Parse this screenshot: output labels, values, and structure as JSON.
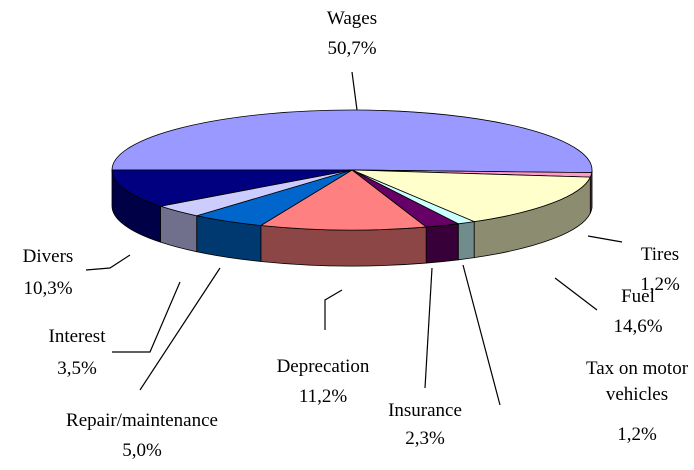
{
  "chart_data": {
    "type": "pie",
    "categories": [
      "Wages",
      "Tires",
      "Fuel",
      "Tax on motor vehicles",
      "Insurance",
      "Deprecation",
      "Repair/maintenance",
      "Interest",
      "Divers"
    ],
    "values": [
      50.7,
      1.2,
      14.6,
      1.2,
      2.3,
      11.2,
      5.0,
      3.5,
      10.3
    ],
    "value_labels": [
      "50,7%",
      "1,2%",
      "14,6%",
      "1,2%",
      "2,3%",
      "11,2%",
      "5,0%",
      "3,5%",
      "10,3%"
    ],
    "colors": [
      "#9999ff",
      "#ff99cc",
      "#ffffcc",
      "#ccffff",
      "#660066",
      "#ff8080",
      "#0066cc",
      "#ccccff",
      "#000080"
    ]
  }
}
